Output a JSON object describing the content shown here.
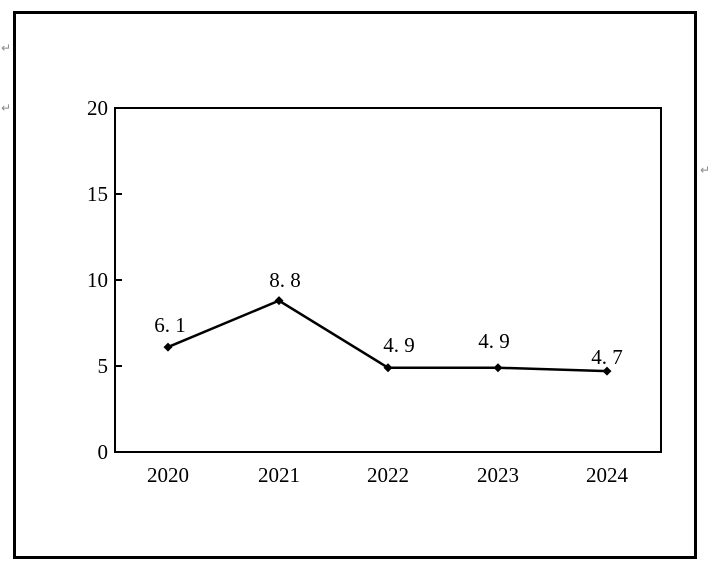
{
  "page": {
    "background_color": "#ffffff",
    "border_color": "#000000"
  },
  "editor_marks": {
    "return_symbol": "↵",
    "color": "#8a8a8a"
  },
  "chart_data": {
    "type": "line",
    "title": "",
    "xlabel": "",
    "ylabel": "",
    "categories": [
      "2020",
      "2021",
      "2022",
      "2023",
      "2024"
    ],
    "values": [
      6.1,
      8.8,
      4.9,
      4.9,
      4.7
    ],
    "point_labels": [
      "6. 1",
      "8. 8",
      "4. 9",
      "4. 9",
      "4. 7"
    ],
    "y_ticks": [
      0,
      5,
      10,
      15,
      20
    ],
    "y_tick_labels_top_to_bottom": [
      "20",
      "15",
      "10",
      "5",
      "0"
    ],
    "ylim": [
      0,
      20
    ],
    "grid": false,
    "legend": false,
    "line_color": "#000000",
    "marker": "diamond",
    "marker_color": "#000000"
  }
}
